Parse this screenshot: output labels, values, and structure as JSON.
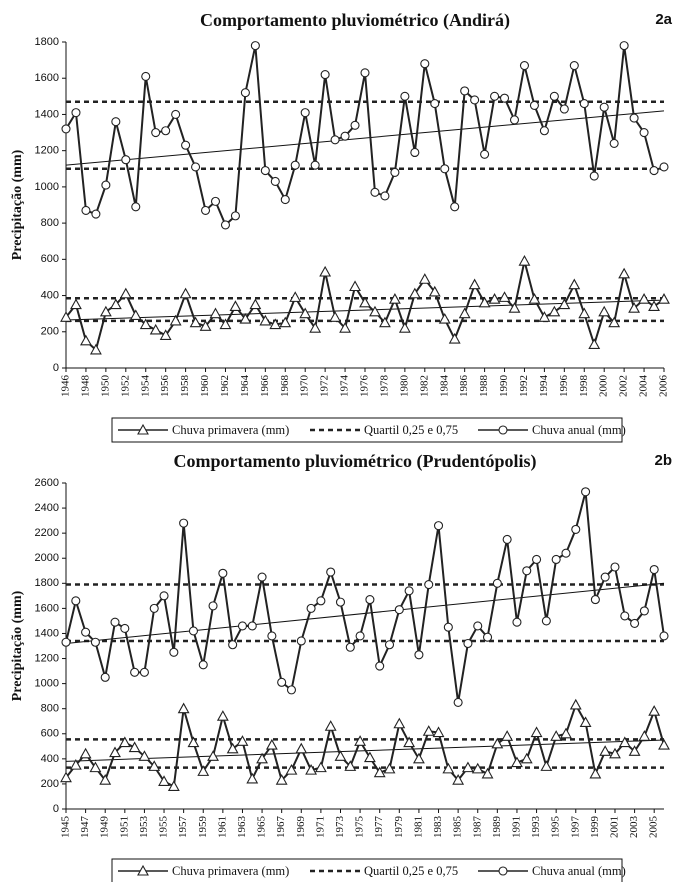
{
  "chart_data": [
    {
      "type": "line",
      "title": "Comportamento pluviométrico (Andirá)",
      "annotation": "2a",
      "y_label": "Precipitação (mm)",
      "x": [
        1946,
        1947,
        1948,
        1949,
        1950,
        1951,
        1952,
        1953,
        1954,
        1955,
        1956,
        1957,
        1958,
        1959,
        1960,
        1961,
        1962,
        1963,
        1964,
        1965,
        1966,
        1967,
        1968,
        1969,
        1970,
        1971,
        1972,
        1973,
        1974,
        1975,
        1976,
        1977,
        1978,
        1979,
        1980,
        1981,
        1982,
        1983,
        1984,
        1985,
        1986,
        1987,
        1988,
        1989,
        1990,
        1991,
        1992,
        1993,
        1994,
        1995,
        1996,
        1997,
        1998,
        1999,
        2000,
        2001,
        2002,
        2003,
        2004,
        2005,
        2006
      ],
      "xlim": [
        1946,
        2006
      ],
      "xticks": [
        1946,
        1948,
        1950,
        1952,
        1954,
        1956,
        1958,
        1960,
        1962,
        1964,
        1966,
        1968,
        1970,
        1972,
        1974,
        1976,
        1978,
        1980,
        1982,
        1984,
        1986,
        1988,
        1990,
        1992,
        1994,
        1996,
        1998,
        2000,
        2002,
        2004,
        2006
      ],
      "ylim": [
        0,
        1800
      ],
      "yticks": [
        0,
        200,
        400,
        600,
        800,
        1000,
        1200,
        1400,
        1600,
        1800
      ],
      "series": [
        {
          "name": "Chuva primavera (mm)",
          "color": "#222222",
          "marker": "triangle",
          "values": [
            280,
            350,
            150,
            100,
            310,
            350,
            410,
            290,
            240,
            210,
            180,
            260,
            410,
            250,
            230,
            300,
            240,
            340,
            270,
            350,
            260,
            240,
            250,
            390,
            300,
            220,
            530,
            280,
            220,
            450,
            360,
            310,
            250,
            380,
            220,
            410,
            490,
            420,
            270,
            160,
            300,
            460,
            360,
            380,
            390,
            330,
            590,
            380,
            280,
            310,
            350,
            460,
            300,
            130,
            310,
            250,
            520,
            330,
            380,
            340,
            380
          ]
        },
        {
          "name": "Quartil 0,25 e 0,75",
          "color": "#222222",
          "levels": [
            260,
            385,
            1100,
            1470
          ]
        },
        {
          "name": "Chuva anual (mm)",
          "color": "#222222",
          "marker": "circle",
          "values": [
            1320,
            1410,
            870,
            850,
            1010,
            1360,
            1150,
            890,
            1610,
            1300,
            1310,
            1400,
            1230,
            1110,
            870,
            920,
            790,
            840,
            1520,
            1780,
            1090,
            1030,
            930,
            1120,
            1410,
            1120,
            1620,
            1260,
            1280,
            1340,
            1630,
            970,
            950,
            1080,
            1500,
            1190,
            1680,
            1460,
            1100,
            890,
            1530,
            1480,
            1180,
            1500,
            1490,
            1370,
            1670,
            1450,
            1310,
            1500,
            1430,
            1670,
            1460,
            1060,
            1440,
            1240,
            1780,
            1380,
            1300,
            1090,
            1110
          ]
        }
      ],
      "trend": [
        [
          265,
          375
        ],
        [
          1120,
          1420
        ]
      ]
    },
    {
      "type": "line",
      "title": "Comportamento pluviométrico (Prudentópolis)",
      "annotation": "2b",
      "y_label": "Precipitação (mm)",
      "x": [
        1945,
        1946,
        1947,
        1948,
        1949,
        1950,
        1951,
        1952,
        1953,
        1954,
        1955,
        1956,
        1957,
        1958,
        1959,
        1960,
        1961,
        1962,
        1963,
        1964,
        1965,
        1966,
        1967,
        1968,
        1969,
        1970,
        1971,
        1972,
        1973,
        1974,
        1975,
        1976,
        1977,
        1978,
        1979,
        1980,
        1981,
        1982,
        1983,
        1984,
        1985,
        1986,
        1987,
        1988,
        1989,
        1990,
        1991,
        1992,
        1993,
        1994,
        1995,
        1996,
        1997,
        1998,
        1999,
        2000,
        2001,
        2002,
        2003,
        2004,
        2005,
        2006
      ],
      "xlim": [
        1945,
        2006
      ],
      "xticks": [
        1945,
        1947,
        1949,
        1951,
        1953,
        1955,
        1957,
        1959,
        1961,
        1963,
        1965,
        1967,
        1969,
        1971,
        1973,
        1975,
        1977,
        1979,
        1981,
        1983,
        1985,
        1987,
        1989,
        1991,
        1993,
        1995,
        1997,
        1999,
        2001,
        2003,
        2005
      ],
      "ylim": [
        0,
        2600
      ],
      "yticks": [
        0,
        200,
        400,
        600,
        800,
        1000,
        1200,
        1400,
        1600,
        1800,
        2000,
        2200,
        2400,
        2600
      ],
      "series": [
        {
          "name": "Chuva primavera (mm)",
          "color": "#222222",
          "marker": "triangle",
          "values": [
            250,
            350,
            440,
            330,
            230,
            450,
            530,
            490,
            420,
            340,
            220,
            180,
            800,
            530,
            300,
            420,
            740,
            480,
            540,
            240,
            400,
            510,
            230,
            310,
            480,
            310,
            330,
            660,
            420,
            340,
            540,
            410,
            290,
            320,
            680,
            530,
            400,
            620,
            610,
            320,
            230,
            330,
            320,
            280,
            520,
            580,
            370,
            400,
            610,
            340,
            580,
            600,
            830,
            690,
            280,
            460,
            440,
            530,
            460,
            580,
            780,
            510
          ]
        },
        {
          "name": "Quartil 0,25 e 0,75",
          "color": "#222222",
          "levels": [
            330,
            555,
            1340,
            1790
          ]
        },
        {
          "name": "Chuva anual (mm)",
          "color": "#222222",
          "marker": "circle",
          "values": [
            1330,
            1660,
            1410,
            1330,
            1050,
            1490,
            1440,
            1090,
            1090,
            1600,
            1700,
            1250,
            2280,
            1420,
            1150,
            1620,
            1880,
            1310,
            1460,
            1460,
            1850,
            1380,
            1010,
            950,
            1340,
            1600,
            1660,
            1890,
            1650,
            1290,
            1380,
            1670,
            1140,
            1310,
            1590,
            1740,
            1230,
            1790,
            2260,
            1450,
            850,
            1320,
            1460,
            1370,
            1800,
            2150,
            1490,
            1900,
            1990,
            1500,
            1990,
            2040,
            2230,
            2530,
            1670,
            1850,
            1930,
            1540,
            1480,
            1580,
            1910,
            1380
          ]
        }
      ],
      "trend": [
        [
          380,
          550
        ],
        [
          1320,
          1800
        ]
      ]
    }
  ]
}
